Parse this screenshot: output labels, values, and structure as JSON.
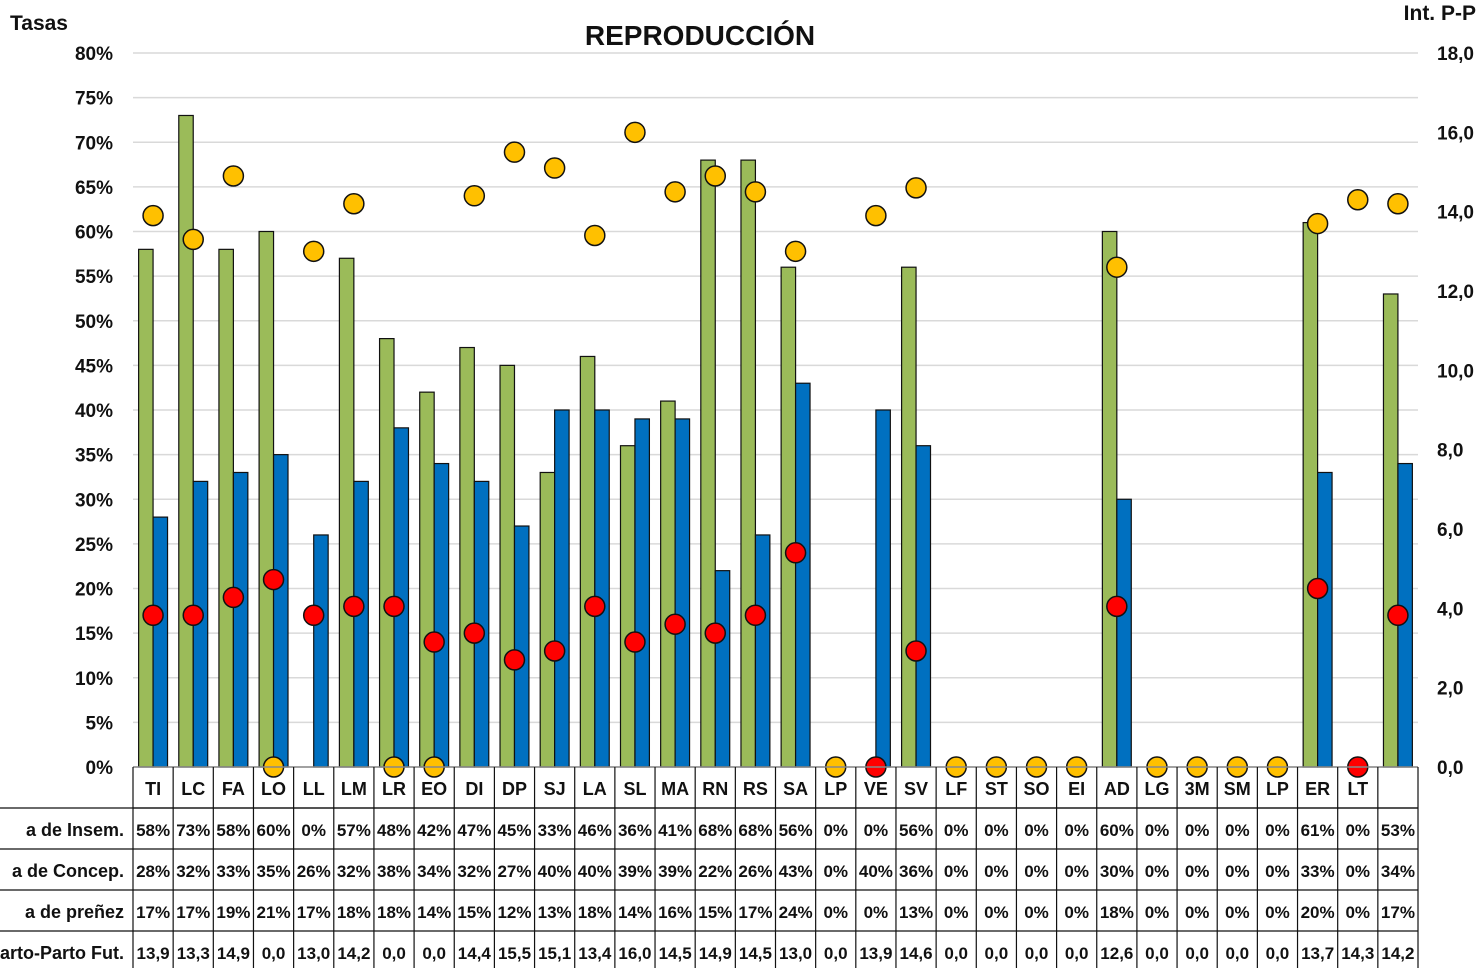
{
  "chart_data": {
    "type": "bar",
    "title": "REPRODUCCIÓN",
    "ylabel": "Tasas",
    "y2label": "Int. P-P",
    "ylim": [
      0,
      80
    ],
    "y2lim": [
      0,
      18
    ],
    "yticks": [
      "0%",
      "5%",
      "10%",
      "15%",
      "20%",
      "25%",
      "30%",
      "35%",
      "40%",
      "45%",
      "50%",
      "55%",
      "60%",
      "65%",
      "70%",
      "75%",
      "80%"
    ],
    "y2ticks": [
      "0,0",
      "2,0",
      "4,0",
      "6,0",
      "8,0",
      "10,0",
      "12,0",
      "14,0",
      "16,0",
      "18,0"
    ],
    "grid": true,
    "categories": [
      "TI",
      "LC",
      "FA",
      "LO",
      "LL",
      "LM",
      "LR",
      "EO",
      "DI",
      "DP",
      "SJ",
      "LA",
      "SL",
      "MA",
      "RN",
      "RS",
      "SA",
      "LP",
      "VE",
      "SV",
      "LF",
      "ST",
      "SO",
      "EI",
      "AD",
      "LG",
      "3M",
      "SM",
      "LP",
      "ER",
      "LT",
      ""
    ],
    "series": [
      {
        "name": "a de Insem.",
        "kind": "bar",
        "axis": "left",
        "color": "#9BBB59",
        "values": [
          58,
          73,
          58,
          60,
          0,
          57,
          48,
          42,
          47,
          45,
          33,
          46,
          36,
          41,
          68,
          68,
          56,
          0,
          0,
          56,
          0,
          0,
          0,
          0,
          60,
          0,
          0,
          0,
          0,
          61,
          0,
          53
        ],
        "labels": [
          "58%",
          "73%",
          "58%",
          "60%",
          "0%",
          "57%",
          "48%",
          "42%",
          "47%",
          "45%",
          "33%",
          "46%",
          "36%",
          "41%",
          "68%",
          "68%",
          "56%",
          "0%",
          "0%",
          "56%",
          "0%",
          "0%",
          "0%",
          "0%",
          "60%",
          "0%",
          "0%",
          "0%",
          "0%",
          "61%",
          "0%",
          "53%"
        ]
      },
      {
        "name": "a de Concep.",
        "kind": "bar",
        "axis": "left",
        "color": "#0070C0",
        "values": [
          28,
          32,
          33,
          35,
          26,
          32,
          38,
          34,
          32,
          27,
          40,
          40,
          39,
          39,
          22,
          26,
          43,
          0,
          40,
          36,
          0,
          0,
          0,
          0,
          30,
          0,
          0,
          0,
          0,
          33,
          0,
          34
        ],
        "labels": [
          "28%",
          "32%",
          "33%",
          "35%",
          "26%",
          "32%",
          "38%",
          "34%",
          "32%",
          "27%",
          "40%",
          "40%",
          "39%",
          "39%",
          "22%",
          "26%",
          "43%",
          "0%",
          "40%",
          "36%",
          "0%",
          "0%",
          "0%",
          "0%",
          "30%",
          "0%",
          "0%",
          "0%",
          "0%",
          "33%",
          "0%",
          "34%"
        ]
      },
      {
        "name": "a de preñez",
        "kind": "marker",
        "axis": "left",
        "color": "#FF0000",
        "values": [
          17,
          17,
          19,
          21,
          17,
          18,
          18,
          14,
          15,
          12,
          13,
          18,
          14,
          16,
          15,
          17,
          24,
          0,
          0,
          13,
          0,
          0,
          0,
          0,
          18,
          0,
          0,
          0,
          0,
          20,
          0,
          17
        ],
        "labels": [
          "17%",
          "17%",
          "19%",
          "21%",
          "17%",
          "18%",
          "18%",
          "14%",
          "15%",
          "12%",
          "13%",
          "18%",
          "14%",
          "16%",
          "15%",
          "17%",
          "24%",
          "0%",
          "0%",
          "13%",
          "0%",
          "0%",
          "0%",
          "0%",
          "18%",
          "0%",
          "0%",
          "0%",
          "0%",
          "20%",
          "0%",
          "17%"
        ]
      },
      {
        "name": "Parto-Parto Fut.",
        "kind": "marker",
        "axis": "right",
        "color": "#FFC000",
        "values": [
          13.9,
          13.3,
          14.9,
          0.0,
          13.0,
          14.2,
          0.0,
          0.0,
          14.4,
          15.5,
          15.1,
          13.4,
          16.0,
          14.5,
          14.9,
          14.5,
          13.0,
          0.0,
          13.9,
          14.6,
          0.0,
          0.0,
          0.0,
          0.0,
          12.6,
          0.0,
          0.0,
          0.0,
          0.0,
          13.7,
          14.3,
          14.2
        ],
        "labels": [
          "13,9",
          "13,3",
          "14,9",
          "0,0",
          "13,0",
          "14,2",
          "0,0",
          "0,0",
          "14,4",
          "15,5",
          "15,1",
          "13,4",
          "16,0",
          "14,5",
          "14,9",
          "14,5",
          "13,0",
          "0,0",
          "13,9",
          "14,6",
          "0,0",
          "0,0",
          "0,0",
          "0,0",
          "12,6",
          "0,0",
          "0,0",
          "0,0",
          "0,0",
          "13,7",
          "14,3",
          "14,2"
        ]
      }
    ],
    "last_red_marker_hidden": true
  }
}
